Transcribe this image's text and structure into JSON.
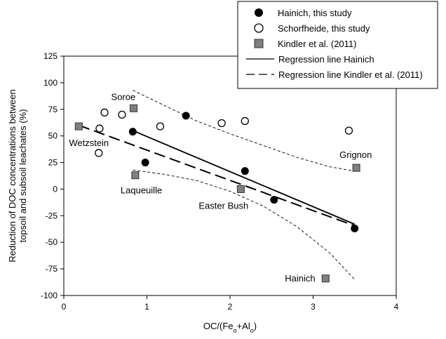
{
  "chart_data": {
    "type": "scatter",
    "title": "",
    "xlabel_parts": [
      "OC/(Fe",
      "o",
      "+Al",
      "o",
      ")"
    ],
    "ylabel_lines": [
      "Reduction of DOC concentrations between",
      "topsoil and subsoil leachates (%)"
    ],
    "xlim": [
      0,
      4
    ],
    "ylim": [
      -100,
      125
    ],
    "xticks": [
      0,
      1,
      2,
      3,
      4
    ],
    "yticks": [
      -100,
      -75,
      -50,
      -25,
      0,
      25,
      50,
      75,
      100,
      125
    ],
    "grid": false,
    "legend_position": "top-right",
    "series": [
      {
        "name": "Hainich, this study",
        "marker": "filled-circle",
        "color": "#000000",
        "points": [
          [
            0.83,
            54
          ],
          [
            0.98,
            25
          ],
          [
            1.47,
            69
          ],
          [
            2.18,
            17
          ],
          [
            2.53,
            -10
          ],
          [
            3.5,
            -37
          ]
        ]
      },
      {
        "name": "Schorfheide, this study",
        "marker": "open-circle",
        "color": "#000000",
        "points": [
          [
            0.42,
            34
          ],
          [
            0.43,
            57
          ],
          [
            0.49,
            72
          ],
          [
            0.7,
            70
          ],
          [
            1.16,
            59
          ],
          [
            1.9,
            62
          ],
          [
            2.18,
            64
          ],
          [
            3.43,
            55
          ]
        ]
      },
      {
        "name": "Kindler et al. (2011)",
        "marker": "square",
        "color": "#808080",
        "points": [
          [
            0.18,
            59
          ],
          [
            0.84,
            76
          ],
          [
            0.86,
            13
          ],
          [
            2.13,
            0
          ],
          [
            3.15,
            -84
          ],
          [
            3.52,
            20
          ]
        ]
      }
    ],
    "lines": [
      {
        "name": "Regression line Hainich",
        "style": "solid",
        "points": [
          [
            0.83,
            55
          ],
          [
            3.5,
            -33
          ]
        ]
      },
      {
        "name": "Regression line Kindler et al. (2011)",
        "style": "long-dash",
        "points": [
          [
            0.18,
            60
          ],
          [
            3.52,
            -35
          ]
        ]
      },
      {
        "name": "",
        "style": "short-dash",
        "points": [
          [
            0.83,
            93
          ],
          [
            1.2,
            79
          ],
          [
            1.6,
            64
          ],
          [
            2.0,
            52
          ],
          [
            2.4,
            41
          ],
          [
            2.8,
            30
          ],
          [
            3.2,
            21
          ],
          [
            3.5,
            17
          ]
        ]
      },
      {
        "name": "",
        "style": "short-dash",
        "points": [
          [
            0.83,
            18
          ],
          [
            1.2,
            14
          ],
          [
            1.6,
            8
          ],
          [
            2.0,
            -2
          ],
          [
            2.4,
            -16
          ],
          [
            2.8,
            -35
          ],
          [
            3.2,
            -60
          ],
          [
            3.5,
            -85
          ]
        ]
      }
    ],
    "site_labels": [
      {
        "text": "Soroe",
        "x": 0.84,
        "y": 76
      },
      {
        "text": "Wetzstein",
        "x": 0.18,
        "y": 59
      },
      {
        "text": "Laqueuille",
        "x": 0.86,
        "y": 13
      },
      {
        "text": "Easter Bush",
        "x": 2.13,
        "y": 0
      },
      {
        "text": "Hainich",
        "x": 3.15,
        "y": -84
      },
      {
        "text": "Grignon",
        "x": 3.52,
        "y": 20
      }
    ],
    "legend_entries": [
      {
        "label": "Hainich, this study",
        "symbol": "filled-circle"
      },
      {
        "label": "Schorfheide, this study",
        "symbol": "open-circle"
      },
      {
        "label": "Kindler et al. (2011)",
        "symbol": "square"
      },
      {
        "label": "Regression line Hainich",
        "symbol": "solid-line"
      },
      {
        "label": "Regression line Kindler et al. (2011)",
        "symbol": "dashed-line"
      }
    ]
  }
}
